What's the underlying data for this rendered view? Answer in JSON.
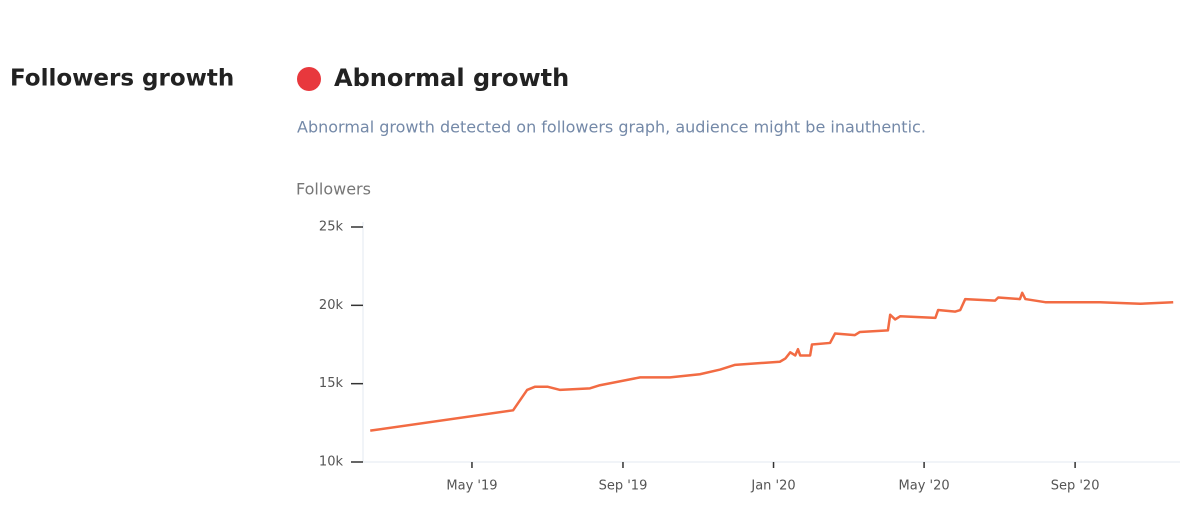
{
  "section": {
    "title": "Followers growth",
    "status": "Abnormal growth",
    "description": "Abnormal growth detected on followers graph, audience might be inauthentic."
  },
  "chart_data": {
    "type": "line",
    "ylabel": "Followers",
    "x": [
      2019.108,
      2019.424,
      2019.455,
      2019.472,
      2019.501,
      2019.528,
      2019.594,
      2019.616,
      2019.705,
      2019.771,
      2019.837,
      2019.882,
      2019.915,
      2020.014,
      2020.026,
      2020.037,
      2020.048,
      2020.054,
      2020.059,
      2020.081,
      2020.085,
      2020.125,
      2020.136,
      2020.18,
      2020.191,
      2020.253,
      2020.258,
      2020.269,
      2020.28,
      2020.358,
      2020.364,
      2020.402,
      2020.413,
      2020.424,
      2020.49,
      2020.497,
      2020.545,
      2020.55,
      2020.557,
      2020.601,
      2020.722,
      2020.811,
      2020.884
    ],
    "series": [
      {
        "name": "Followers",
        "color": "#f26b43",
        "values": [
          12000,
          13300,
          14600,
          14800,
          14800,
          14600,
          14700,
          14900,
          15400,
          15400,
          15600,
          15900,
          16200,
          16400,
          16600,
          17000,
          16800,
          17200,
          16800,
          16800,
          17500,
          17600,
          18200,
          18100,
          18300,
          18400,
          19400,
          19100,
          19300,
          19200,
          19700,
          19600,
          19700,
          20400,
          20300,
          20500,
          20400,
          20800,
          20400,
          20200,
          20200,
          20100,
          20200
        ]
      }
    ],
    "xlim": [
      2019.092,
      2020.899
    ],
    "xticks": [
      {
        "value": 2019.333,
        "label": "May '19"
      },
      {
        "value": 2019.667,
        "label": "Sep '19"
      },
      {
        "value": 2020.0,
        "label": "Jan '20"
      },
      {
        "value": 2020.333,
        "label": "May '20"
      },
      {
        "value": 2020.667,
        "label": "Sep '20"
      }
    ],
    "ylim": [
      10000,
      25000
    ],
    "yticks": [
      {
        "value": 10000,
        "label": "10k"
      },
      {
        "value": 15000,
        "label": "15k"
      },
      {
        "value": 20000,
        "label": "20k"
      },
      {
        "value": 25000,
        "label": "25k"
      }
    ],
    "status_color": "#e8383d"
  }
}
